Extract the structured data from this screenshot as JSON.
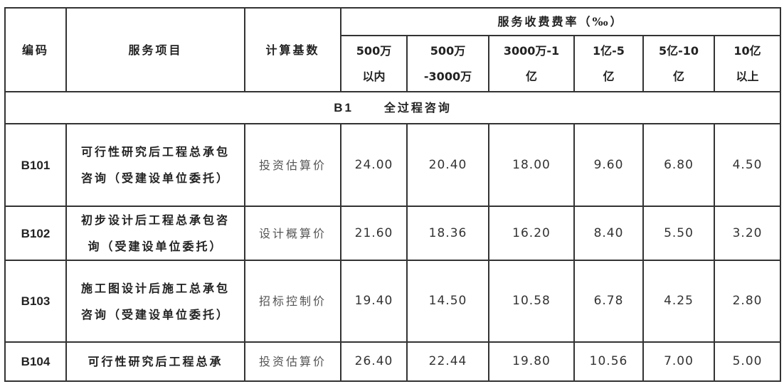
{
  "headers": {
    "code": "编码",
    "item": "服务项目",
    "base": "计算基数",
    "rate_group": "服务收费费率（‰）",
    "ranges": [
      [
        "500万",
        "以内"
      ],
      [
        "500万",
        "-3000万"
      ],
      [
        "3000万-1",
        "亿"
      ],
      [
        "1亿-5",
        "亿"
      ],
      [
        "5亿-10",
        "亿"
      ],
      [
        "10亿",
        "以上"
      ]
    ]
  },
  "section": {
    "code": "B1",
    "title": "全过程咨询"
  },
  "rows": [
    {
      "code": "B101",
      "item": "可行性研究后工程总承包咨询（受建设单位委托）",
      "base": "投资估算价",
      "rates": [
        "24.00",
        "20.40",
        "18.00",
        "9.60",
        "6.80",
        "4.50"
      ]
    },
    {
      "code": "B102",
      "item": "初步设计后工程总承包咨询（受建设单位委托）",
      "base": "设计概算价",
      "rates": [
        "21.60",
        "18.36",
        "16.20",
        "8.40",
        "5.50",
        "3.20"
      ]
    },
    {
      "code": "B103",
      "item": "施工图设计后施工总承包咨询（受建设单位委托）",
      "base": "招标控制价",
      "rates": [
        "19.40",
        "14.50",
        "10.58",
        "6.78",
        "4.25",
        "2.80"
      ]
    },
    {
      "code": "B104",
      "item": "可行性研究后工程总承",
      "base": "投资估算价",
      "rates": [
        "26.40",
        "22.44",
        "19.80",
        "10.56",
        "7.00",
        "5.00"
      ]
    }
  ]
}
